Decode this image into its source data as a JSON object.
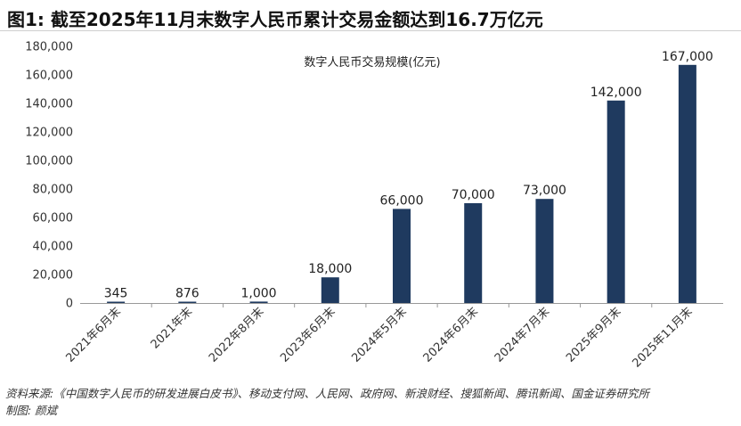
{
  "title": "图1: 截至2025年11月末数字人民币累计交易金额达到16.7万亿元",
  "footer": {
    "source": "资料来源:《中国数字人民币的研发进展白皮书》、移动支付网、人民网、政府网、新浪财经、搜狐新闻、腾讯新闻、国金证券研究所",
    "author": "制图: 颜斌"
  },
  "chart_data": {
    "type": "bar",
    "title": "",
    "legend_text": "数字人民币交易规模(亿元)",
    "legend_position": "top-center",
    "categories": [
      "2021年6月末",
      "2021年末",
      "2022年8月末",
      "2023年6月末",
      "2024年5月末",
      "2024年6月末",
      "2024年7月末",
      "2025年9月末",
      "2025年11月末"
    ],
    "values": [
      345,
      876,
      1000,
      18000,
      66000,
      70000,
      73000,
      142000,
      167000
    ],
    "data_labels": [
      "345",
      "876",
      "1,000",
      "18,000",
      "66,000",
      "70,000",
      "73,000",
      "142,000",
      "167,000"
    ],
    "ylim": [
      0,
      180000
    ],
    "yticks": [
      0,
      20000,
      40000,
      60000,
      80000,
      100000,
      120000,
      140000,
      160000,
      180000
    ],
    "ytick_labels": [
      "0",
      "20,000",
      "40,000",
      "60,000",
      "80,000",
      "100,000",
      "120,000",
      "140,000",
      "160,000",
      "180,000"
    ],
    "xlabel": "",
    "ylabel": "",
    "grid": false,
    "bar_color": "#1f3a5f"
  }
}
